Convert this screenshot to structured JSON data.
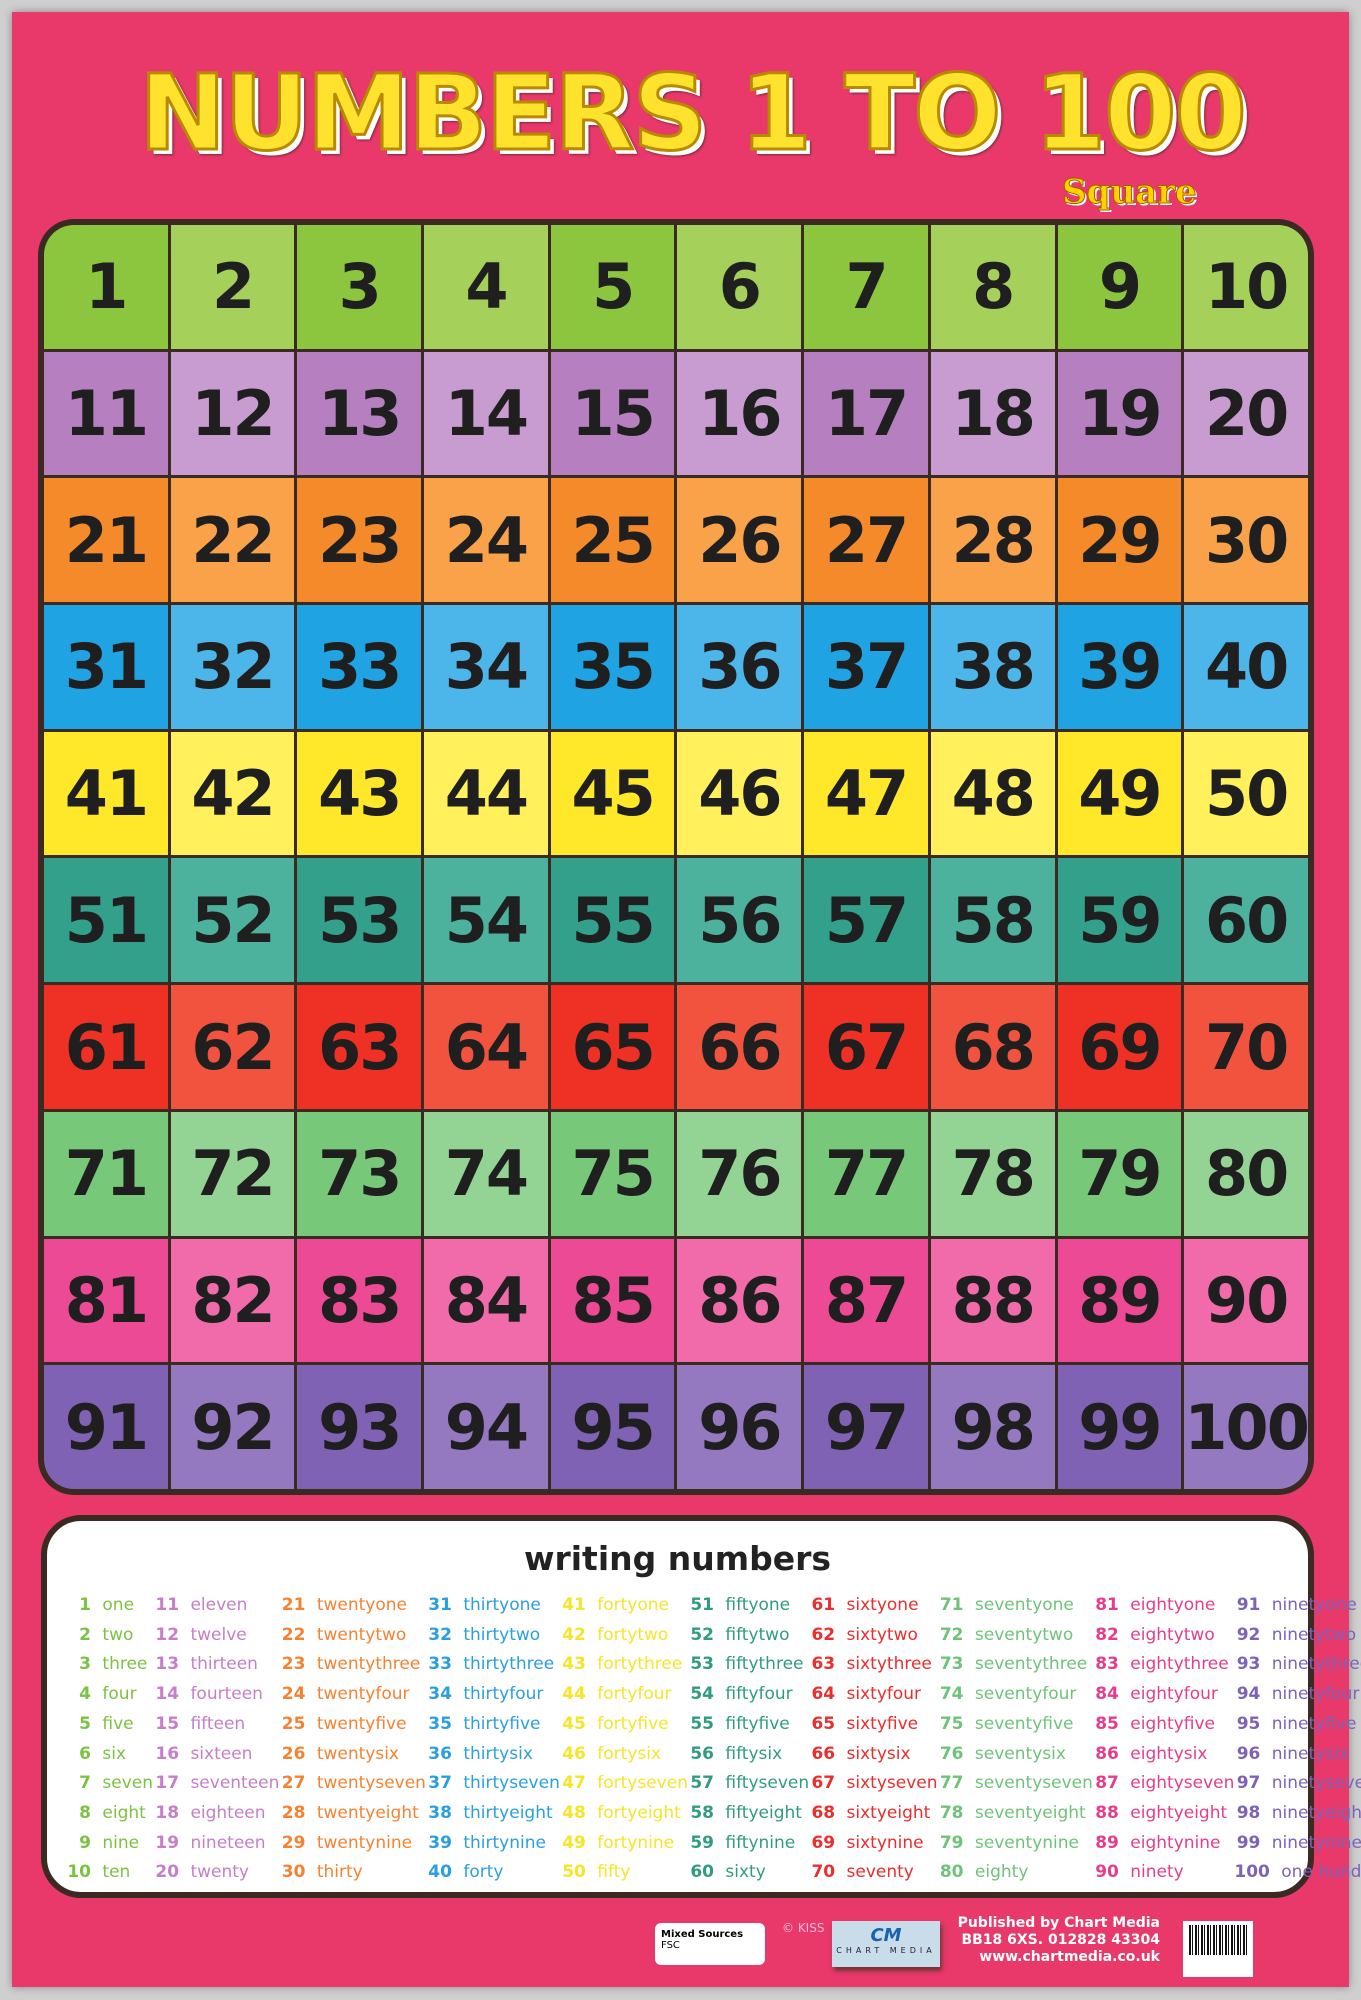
{
  "title": "NUMBERS 1 TO 100",
  "subtitle": "Square",
  "row_colors": [
    [
      "#8cc63f",
      "#a5d15b"
    ],
    [
      "#b57fc0",
      "#c89bd1"
    ],
    [
      "#f58a2a",
      "#f9a24a"
    ],
    [
      "#1fa3e3",
      "#4cb6ea"
    ],
    [
      "#ffe82a",
      "#fff05c"
    ],
    [
      "#33a08b",
      "#4db29d"
    ],
    [
      "#ee3124",
      "#f2533f"
    ],
    [
      "#78c87a",
      "#93d494"
    ],
    [
      "#ec4a94",
      "#f16aa9"
    ],
    [
      "#7f62b3",
      "#9479c1"
    ]
  ],
  "word_colors": [
    "#7cc242",
    "#c57fc8",
    "#f58232",
    "#2a9fe0",
    "#f5e52a",
    "#2f9c80",
    "#ea2d2d",
    "#6fc27a",
    "#e53d8c",
    "#7d63b7"
  ],
  "writing_title": "writing numbers",
  "words": [
    "one",
    "two",
    "three",
    "four",
    "five",
    "six",
    "seven",
    "eight",
    "nine",
    "ten",
    "eleven",
    "twelve",
    "thirteen",
    "fourteen",
    "fifteen",
    "sixteen",
    "seventeen",
    "eighteen",
    "nineteen",
    "twenty",
    "twentyone",
    "twentytwo",
    "twentythree",
    "twentyfour",
    "twentyfive",
    "twentysix",
    "twentyseven",
    "twentyeight",
    "twentynine",
    "thirty",
    "thirtyone",
    "thirtytwo",
    "thirtythree",
    "thirtyfour",
    "thirtyfive",
    "thirtysix",
    "thirtyseven",
    "thirtyeight",
    "thirtynine",
    "forty",
    "fortyone",
    "fortytwo",
    "fortythree",
    "fortyfour",
    "fortyfive",
    "fortysix",
    "fortyseven",
    "fortyeight",
    "fortynine",
    "fifty",
    "fiftyone",
    "fiftytwo",
    "fiftythree",
    "fiftyfour",
    "fiftyfive",
    "fiftysix",
    "fiftyseven",
    "fiftyeight",
    "fiftynine",
    "sixty",
    "sixtyone",
    "sixtytwo",
    "sixtythree",
    "sixtyfour",
    "sixtyfive",
    "sixtysix",
    "sixtyseven",
    "sixtyeight",
    "sixtynine",
    "seventy",
    "seventyone",
    "seventytwo",
    "seventythree",
    "seventyfour",
    "seventyfive",
    "seventysix",
    "seventyseven",
    "seventyeight",
    "seventynine",
    "eighty",
    "eightyone",
    "eightytwo",
    "eightythree",
    "eightyfour",
    "eightyfive",
    "eightysix",
    "eightyseven",
    "eightyeight",
    "eightynine",
    "ninety",
    "ninetyone",
    "ninetytwo",
    "ninetythree",
    "ninetyfour",
    "ninetyfive",
    "ninetysix",
    "ninetyseven",
    "ninetyeight",
    "ninetynine",
    "one hundred"
  ],
  "footer": {
    "fsc_label": "Mixed Sources",
    "fsc_mark": "FSC",
    "copyright": "© KISS",
    "cm_logo": "CM",
    "cm_name": "CHART MEDIA",
    "publisher": [
      "Published by Chart Media",
      "BB18 6XS. 012828 43304",
      "www.chartmedia.co.uk"
    ]
  }
}
